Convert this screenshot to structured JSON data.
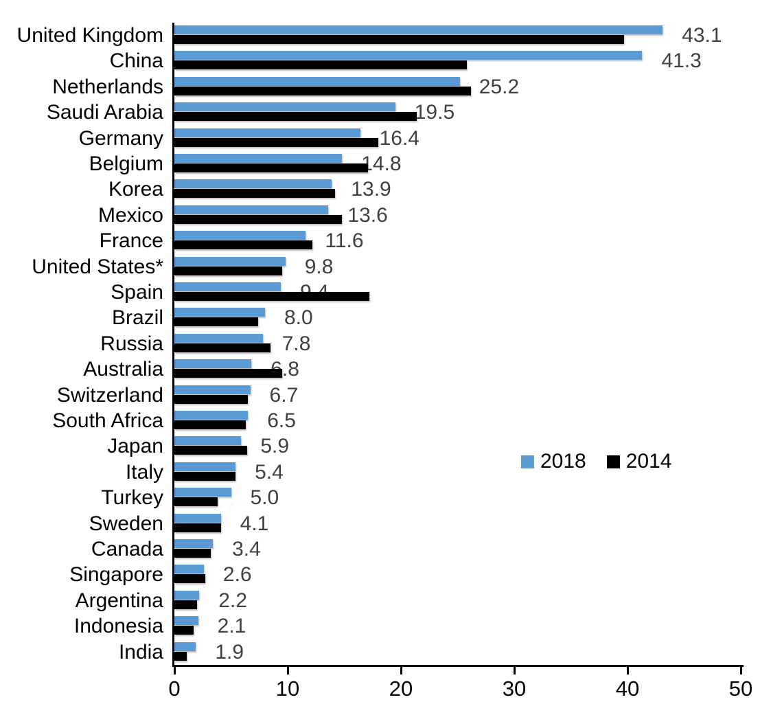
{
  "chart_data": {
    "type": "bar",
    "orientation": "horizontal",
    "title": "",
    "xlabel": "",
    "ylabel": "",
    "xlim": [
      0,
      50
    ],
    "grid": false,
    "legend_position": "middle-right",
    "categories": [
      "United Kingdom",
      "China",
      "Netherlands",
      "Saudi Arabia",
      "Germany",
      "Belgium",
      "Korea",
      "Mexico",
      "France",
      "United States*",
      "Spain",
      "Brazil",
      "Russia",
      "Australia",
      "Switzerland",
      "South Africa",
      "Japan",
      "Italy",
      "Turkey",
      "Sweden",
      "Canada",
      "Singapore",
      "Argentina",
      "Indonesia",
      "India"
    ],
    "series": [
      {
        "name": "2018",
        "color": "#5B9BD5",
        "values": [
          43.1,
          41.3,
          25.2,
          19.5,
          16.4,
          14.8,
          13.9,
          13.6,
          11.6,
          9.8,
          9.4,
          8.0,
          7.8,
          6.8,
          6.7,
          6.5,
          5.9,
          5.4,
          5.0,
          4.1,
          3.4,
          2.6,
          2.2,
          2.1,
          1.9
        ]
      },
      {
        "name": "2014",
        "color": "#000000",
        "values": [
          39.7,
          25.8,
          26.2,
          21.4,
          18.0,
          17.1,
          14.2,
          14.8,
          12.2,
          9.5,
          17.2,
          7.4,
          8.5,
          9.5,
          6.5,
          6.3,
          6.4,
          5.4,
          3.8,
          4.1,
          3.2,
          2.7,
          2.0,
          1.7,
          1.1
        ]
      }
    ],
    "value_labels": [
      "43.1",
      "41.3",
      "25.2",
      "19.5",
      "16.4",
      "14.8",
      "13.9",
      "13.6",
      "11.6",
      "9.8",
      "9.4",
      "8.0",
      "7.8",
      "6.8",
      "6.7",
      "6.5",
      "5.9",
      "5.4",
      "5.0",
      "4.1",
      "3.4",
      "2.6",
      "2.2",
      "2.1",
      "1.9"
    ],
    "value_label_color": "#404040",
    "x_ticks": [
      {
        "value": 0,
        "label": "0"
      },
      {
        "value": 10,
        "label": "10"
      },
      {
        "value": 20,
        "label": "20"
      },
      {
        "value": 30,
        "label": "30"
      },
      {
        "value": 40,
        "label": "40"
      },
      {
        "value": 50,
        "label": "50"
      }
    ]
  },
  "legend": {
    "items": [
      {
        "label": "2018",
        "color": "#5B9BD5"
      },
      {
        "label": "2014",
        "color": "#000000"
      }
    ]
  }
}
